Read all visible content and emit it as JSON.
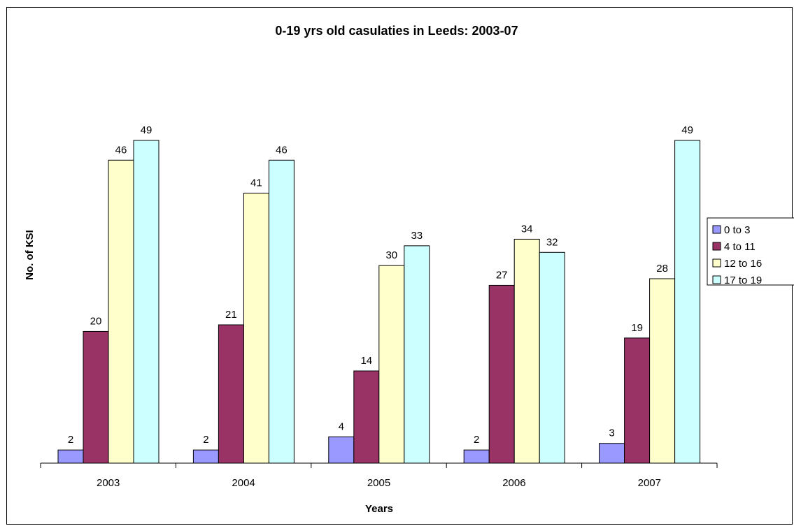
{
  "chart_data": {
    "type": "bar",
    "title": "0-19 yrs old casulaties in Leeds: 2003-07",
    "xlabel": "Years",
    "ylabel": "No. of KSI",
    "categories": [
      "2003",
      "2004",
      "2005",
      "2006",
      "2007"
    ],
    "series": [
      {
        "name": "0 to 3",
        "values": [
          2,
          2,
          4,
          2,
          3
        ],
        "color": "#9999ff"
      },
      {
        "name": "4 to 11",
        "values": [
          20,
          21,
          14,
          27,
          19
        ],
        "color": "#993366"
      },
      {
        "name": "12 to 16",
        "values": [
          46,
          41,
          30,
          34,
          28
        ],
        "color": "#ffffcc"
      },
      {
        "name": "17 to 19",
        "values": [
          49,
          46,
          33,
          32,
          49
        ],
        "color": "#ccffff"
      }
    ],
    "ylim": [
      0,
      49
    ],
    "data_labels": true,
    "grid": false,
    "legend_position": "right"
  }
}
